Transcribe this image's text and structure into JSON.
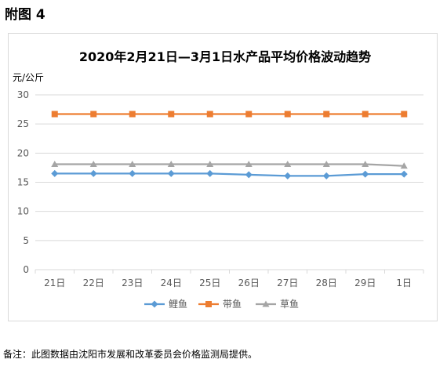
{
  "page": {
    "heading": "附图 4",
    "footnote": "备注：此图数据由沈阳市发展和改革委员会价格监测局提供。"
  },
  "colors": {
    "series": [
      "#5b9bd5",
      "#ed7d31",
      "#a5a5a5"
    ],
    "grid": "#d9d9d9",
    "axis_text": "#595959",
    "title": "#000000"
  },
  "chart_data": {
    "type": "line",
    "title": "2020年2月21日—3月1日水产品平均价格波动趋势",
    "ylabel": "元/公斤",
    "xlabel": "",
    "categories": [
      "21日",
      "22日",
      "23日",
      "24日",
      "25日",
      "26日",
      "27日",
      "28日",
      "29日",
      "1日"
    ],
    "ylim": [
      0,
      30
    ],
    "yticks": [
      0,
      5,
      10,
      15,
      20,
      25,
      30
    ],
    "grid": true,
    "legend": "bottom",
    "series": [
      {
        "name": "鲤鱼",
        "marker": "diamond",
        "values": [
          16.5,
          16.5,
          16.5,
          16.5,
          16.5,
          16.3,
          16.1,
          16.1,
          16.4,
          16.4
        ]
      },
      {
        "name": "带鱼",
        "marker": "square",
        "values": [
          26.7,
          26.7,
          26.7,
          26.7,
          26.7,
          26.7,
          26.7,
          26.7,
          26.7,
          26.7
        ]
      },
      {
        "name": "草鱼",
        "marker": "triangle",
        "values": [
          18.1,
          18.1,
          18.1,
          18.1,
          18.1,
          18.1,
          18.1,
          18.1,
          18.1,
          17.8
        ]
      }
    ]
  }
}
